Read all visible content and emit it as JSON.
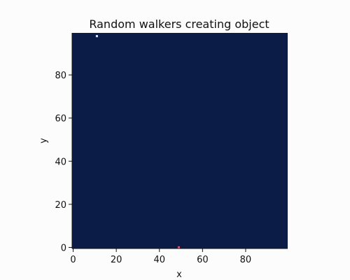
{
  "chart_data": {
    "type": "heatmap",
    "title": "Random walkers creating object",
    "xlabel": "x",
    "ylabel": "y",
    "xlim": [
      -0.5,
      99.5
    ],
    "ylim": [
      -0.5,
      99.5
    ],
    "x_ticks": [
      0,
      20,
      40,
      60,
      80
    ],
    "y_ticks": [
      0,
      20,
      40,
      60,
      80
    ],
    "x_tick_labels": [
      "0",
      "20",
      "40",
      "60",
      "80"
    ],
    "y_tick_labels": [
      "0",
      "20",
      "40",
      "60",
      "80"
    ],
    "grid": false,
    "background_color": "#0b1d47",
    "points": [
      {
        "x": 11,
        "y": 98,
        "color": "#d9e4ff"
      },
      {
        "x": 49,
        "y": 0,
        "color": "#e45a74"
      }
    ]
  }
}
